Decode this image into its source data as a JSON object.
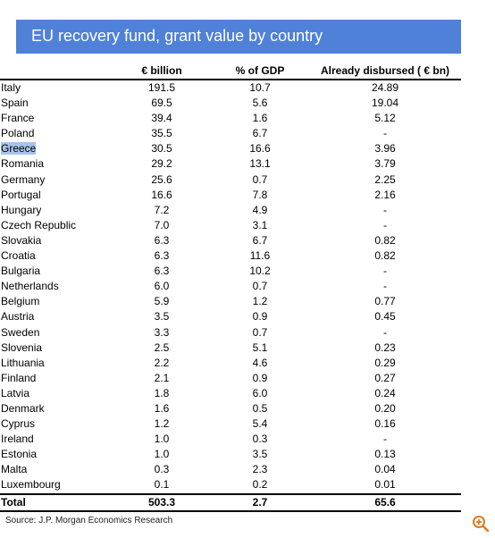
{
  "title": "EU recovery fund, grant value by country",
  "headers": {
    "country": "",
    "eur_billion": "€ billion",
    "pct_gdp": "% of GDP",
    "disbursed": "Already disbursed ( € bn)"
  },
  "rows": [
    {
      "country": "Italy",
      "eur": "191.5",
      "gdp": "10.7",
      "disbursed": "24.89"
    },
    {
      "country": "Spain",
      "eur": "69.5",
      "gdp": "5.6",
      "disbursed": "19.04"
    },
    {
      "country": "France",
      "eur": "39.4",
      "gdp": "1.6",
      "disbursed": "5.12"
    },
    {
      "country": "Poland",
      "eur": "35.5",
      "gdp": "6.7",
      "disbursed": "-"
    },
    {
      "country": "Greece",
      "eur": "30.5",
      "gdp": "16.6",
      "disbursed": "3.96",
      "highlighted": true
    },
    {
      "country": "Romania",
      "eur": "29.2",
      "gdp": "13.1",
      "disbursed": "3.79"
    },
    {
      "country": "Germany",
      "eur": "25.6",
      "gdp": "0.7",
      "disbursed": "2.25"
    },
    {
      "country": "Portugal",
      "eur": "16.6",
      "gdp": "7.8",
      "disbursed": "2.16"
    },
    {
      "country": "Hungary",
      "eur": "7.2",
      "gdp": "4.9",
      "disbursed": "-"
    },
    {
      "country": "Czech Republic",
      "eur": "7.0",
      "gdp": "3.1",
      "disbursed": "-"
    },
    {
      "country": "Slovakia",
      "eur": "6.3",
      "gdp": "6.7",
      "disbursed": "0.82"
    },
    {
      "country": "Croatia",
      "eur": "6.3",
      "gdp": "11.6",
      "disbursed": "0.82"
    },
    {
      "country": "Bulgaria",
      "eur": "6.3",
      "gdp": "10.2",
      "disbursed": "-"
    },
    {
      "country": "Netherlands",
      "eur": "6.0",
      "gdp": "0.7",
      "disbursed": "-"
    },
    {
      "country": "Belgium",
      "eur": "5.9",
      "gdp": "1.2",
      "disbursed": "0.77"
    },
    {
      "country": "Austria",
      "eur": "3.5",
      "gdp": "0.9",
      "disbursed": "0.45"
    },
    {
      "country": "Sweden",
      "eur": "3.3",
      "gdp": "0.7",
      "disbursed": "-"
    },
    {
      "country": "Slovenia",
      "eur": "2.5",
      "gdp": "5.1",
      "disbursed": "0.23"
    },
    {
      "country": "Lithuania",
      "eur": "2.2",
      "gdp": "4.6",
      "disbursed": "0.29"
    },
    {
      "country": "Finland",
      "eur": "2.1",
      "gdp": "0.9",
      "disbursed": "0.27"
    },
    {
      "country": "Latvia",
      "eur": "1.8",
      "gdp": "6.0",
      "disbursed": "0.24"
    },
    {
      "country": "Denmark",
      "eur": "1.6",
      "gdp": "0.5",
      "disbursed": "0.20"
    },
    {
      "country": "Cyprus",
      "eur": "1.2",
      "gdp": "5.4",
      "disbursed": "0.16"
    },
    {
      "country": "Ireland",
      "eur": "1.0",
      "gdp": "0.3",
      "disbursed": "-"
    },
    {
      "country": "Estonia",
      "eur": "1.0",
      "gdp": "3.5",
      "disbursed": "0.13"
    },
    {
      "country": "Malta",
      "eur": "0.3",
      "gdp": "2.3",
      "disbursed": "0.04"
    },
    {
      "country": "Luxembourg",
      "eur": "0.1",
      "gdp": "0.2",
      "disbursed": "0.01"
    }
  ],
  "total": {
    "country": "Total",
    "eur": "503.3",
    "gdp": "2.7",
    "disbursed": "65.6"
  },
  "source": "Source: J.P. Morgan Economics Research",
  "icons": {
    "zoom": "zoom-in-icon"
  },
  "colors": {
    "title_bg": "#4f81d9",
    "highlight": "#a9c4ea",
    "zoom": "#e07a1f"
  }
}
